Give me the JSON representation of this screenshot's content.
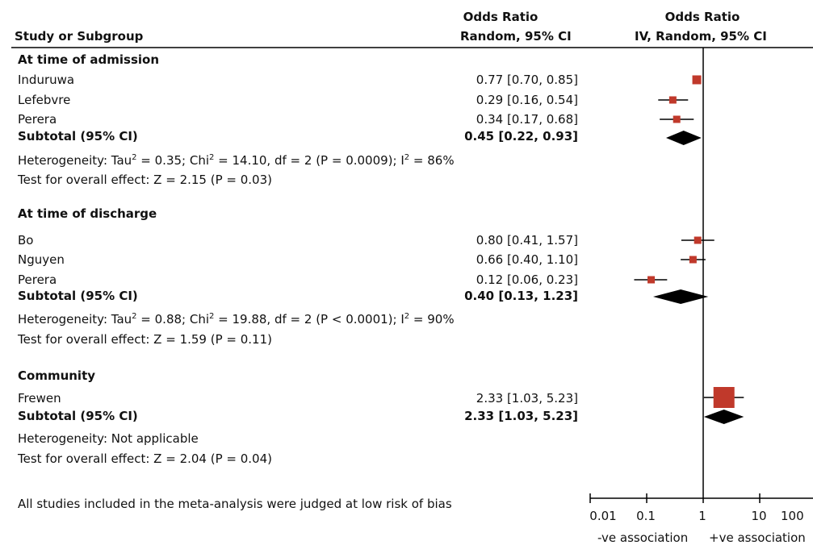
{
  "header": {
    "col1": "Study or Subgroup",
    "col2_line1": "Odds Ratio",
    "col2_line2": "Random, 95% CI",
    "col3_line1": "Odds Ratio",
    "col3_line2": "IV, Random, 95% CI"
  },
  "groups": [
    {
      "title": "At time of admission",
      "studies": [
        {
          "name": "Induruwa",
          "ci_text": "0.77 [0.70, 0.85]"
        },
        {
          "name": "Lefebvre",
          "ci_text": "0.29 [0.16, 0.54]"
        },
        {
          "name": "Perera",
          "ci_text": "0.34 [0.17, 0.68]"
        }
      ],
      "subtotal_label": "Subtotal (95% CI)",
      "subtotal_text": "0.45 [0.22, 0.93]",
      "het_pre": "Heterogeneity: Tau",
      "het_mid": " = 0.35; Chi",
      "het_post": " = 14.10, df = 2 (P = 0.0009); I",
      "het_end": " = 86%",
      "effect": "Test for overall effect: Z = 2.15 (P = 0.03)"
    },
    {
      "title": "At time of discharge",
      "studies": [
        {
          "name": "Bo",
          "ci_text": "0.80 [0.41, 1.57]"
        },
        {
          "name": "Nguyen",
          "ci_text": "0.66 [0.40, 1.10]"
        },
        {
          "name": "Perera",
          "ci_text": "0.12 [0.06, 0.23]"
        }
      ],
      "subtotal_label": "Subtotal (95% CI)",
      "subtotal_text": "0.40 [0.13, 1.23]",
      "het_pre": "Heterogeneity: Tau",
      "het_mid": " = 0.88; Chi",
      "het_post": " = 19.88, df = 2 (P < 0.0001); I",
      "het_end": " = 90%",
      "effect": "Test for overall effect: Z = 1.59 (P = 0.11)"
    },
    {
      "title": "Community",
      "studies": [
        {
          "name": "Frewen",
          "ci_text": "2.33 [1.03, 5.23]"
        }
      ],
      "subtotal_label": "Subtotal (95% CI)",
      "subtotal_text": "2.33 [1.03, 5.23]",
      "het_plain": "Heterogeneity: Not applicable",
      "effect": "Test for overall effect: Z = 2.04 (P = 0.04)"
    }
  ],
  "footnote": "All studies included in the meta-analysis were judged at low risk of bias",
  "superscript_two": "2",
  "axis": {
    "ticks": [
      "0.01",
      "0.1",
      "1",
      "10",
      "100"
    ],
    "left_label": "-ve association",
    "right_label": "+ve association"
  },
  "colors": {
    "marker": "#c0392b",
    "diamond": "#000000",
    "line": "#000000"
  },
  "chart_data": {
    "type": "forest",
    "scale": "log",
    "xlim": [
      0.01,
      100
    ],
    "reference_line": 1,
    "studies": [
      {
        "group": "At time of admission",
        "name": "Induruwa",
        "or": 0.77,
        "lo": 0.7,
        "hi": 0.85
      },
      {
        "group": "At time of admission",
        "name": "Lefebvre",
        "or": 0.29,
        "lo": 0.16,
        "hi": 0.54
      },
      {
        "group": "At time of admission",
        "name": "Perera",
        "or": 0.34,
        "lo": 0.17,
        "hi": 0.68
      },
      {
        "group": "At time of discharge",
        "name": "Bo",
        "or": 0.8,
        "lo": 0.41,
        "hi": 1.57
      },
      {
        "group": "At time of discharge",
        "name": "Nguyen",
        "or": 0.66,
        "lo": 0.4,
        "hi": 1.1
      },
      {
        "group": "At time of discharge",
        "name": "Perera",
        "or": 0.12,
        "lo": 0.06,
        "hi": 0.23
      },
      {
        "group": "Community",
        "name": "Frewen",
        "or": 2.33,
        "lo": 1.03,
        "hi": 5.23
      }
    ],
    "subtotals": [
      {
        "group": "At time of admission",
        "or": 0.45,
        "lo": 0.22,
        "hi": 0.93
      },
      {
        "group": "At time of discharge",
        "or": 0.4,
        "lo": 0.13,
        "hi": 1.23
      },
      {
        "group": "Community",
        "or": 2.33,
        "lo": 1.03,
        "hi": 5.23
      }
    ]
  }
}
